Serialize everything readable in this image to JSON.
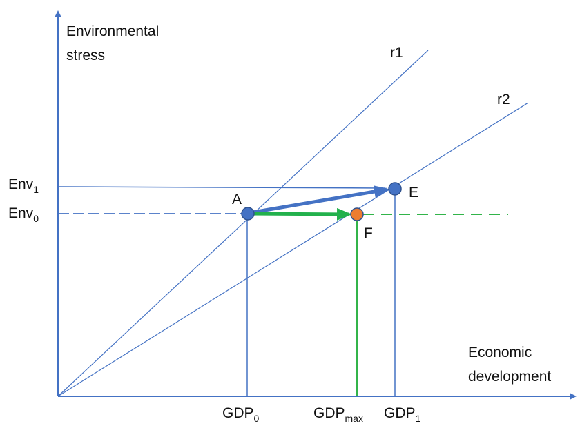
{
  "axes": {
    "y_label_line1": "Environmental",
    "y_label_line2": "stress",
    "x_label_line1": "Economic",
    "x_label_line2": "development"
  },
  "rays": {
    "r1": "r1",
    "r2": "r2"
  },
  "levels": {
    "env1": {
      "base": "Env",
      "sub": "1"
    },
    "env0": {
      "base": "Env",
      "sub": "0"
    },
    "gdp0": {
      "base": "GDP",
      "sub": "0"
    },
    "gdpmax": {
      "base": "GDP",
      "sub": "max"
    },
    "gdp1": {
      "base": "GDP",
      "sub": "1"
    }
  },
  "points": {
    "A": "A",
    "E": "E",
    "F": "F"
  },
  "colors": {
    "axis": "#4472C4",
    "line": "#4472C4",
    "point_blue": "#4472C4",
    "point_orange": "#ED7D31",
    "green": "#22B14C",
    "green_line": "#32B44A"
  }
}
